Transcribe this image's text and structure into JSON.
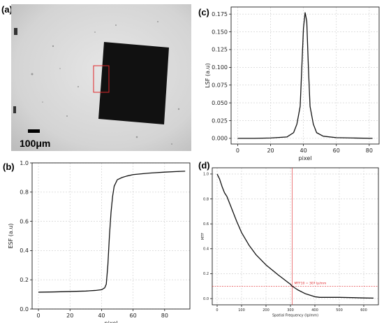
{
  "panels": {
    "a": {
      "label": "(a)",
      "scale_bar_text": "100μm"
    },
    "b": {
      "label": "(b)"
    },
    "c": {
      "label": "(c)"
    },
    "d": {
      "label": "(d)"
    }
  },
  "colors": {
    "line": "#111111",
    "grid": "#cccccc",
    "roi": "#e0262a",
    "annotation": "#e0262a"
  },
  "chart_data": [
    {
      "id": "b",
      "type": "line",
      "xlabel": "pixel",
      "ylabel": "ESF (a.u)",
      "xlim": [
        -4,
        96
      ],
      "ylim": [
        0.0,
        1.0
      ],
      "xticks": [
        0,
        20,
        40,
        60,
        80
      ],
      "yticks": [
        0.0,
        0.2,
        0.4,
        0.6,
        0.8,
        1.0
      ],
      "ytick_labels": [
        "0.0",
        "0.2",
        "0.4",
        "0.6",
        "0.8",
        "1.0"
      ],
      "grid": true,
      "x": [
        0,
        10,
        20,
        30,
        36,
        40,
        42,
        43,
        44,
        45,
        46,
        47,
        48,
        50,
        53,
        56,
        60,
        70,
        80,
        90,
        93
      ],
      "y": [
        0.115,
        0.117,
        0.12,
        0.123,
        0.127,
        0.132,
        0.145,
        0.17,
        0.3,
        0.5,
        0.66,
        0.77,
        0.84,
        0.885,
        0.9,
        0.91,
        0.92,
        0.93,
        0.937,
        0.942,
        0.943
      ]
    },
    {
      "id": "c",
      "type": "line",
      "xlabel": "pixel",
      "ylabel": "LSF (a.u)",
      "xlim": [
        -4,
        86
      ],
      "ylim": [
        -0.008,
        0.185
      ],
      "xticks": [
        0,
        20,
        40,
        60,
        80
      ],
      "yticks": [
        0.0,
        0.025,
        0.05,
        0.075,
        0.1,
        0.125,
        0.15,
        0.175
      ],
      "ytick_labels": [
        "0.000",
        "0.025",
        "0.050",
        "0.075",
        "0.100",
        "0.125",
        "0.150",
        "0.175"
      ],
      "grid": true,
      "x": [
        0,
        10,
        20,
        30,
        34,
        36,
        38,
        39,
        40,
        41,
        42,
        43,
        44,
        46,
        48,
        52,
        60,
        70,
        82
      ],
      "y": [
        0.0,
        0.0,
        0.0005,
        0.002,
        0.008,
        0.02,
        0.045,
        0.1,
        0.155,
        0.177,
        0.165,
        0.1,
        0.045,
        0.02,
        0.008,
        0.003,
        0.001,
        0.0005,
        0.0
      ]
    },
    {
      "id": "d",
      "type": "line",
      "xlabel": "Spatial Frequency (lp/mm)",
      "ylabel": "MTF",
      "xlim": [
        -20,
        660
      ],
      "ylim": [
        -0.05,
        1.05
      ],
      "xticks": [
        0,
        100,
        200,
        300,
        400,
        500,
        600
      ],
      "yticks": [
        0.0,
        0.2,
        0.4,
        0.6,
        0.8,
        1.0
      ],
      "ytick_labels": [
        "0.0",
        "0.2",
        "0.4",
        "0.6",
        "0.8",
        "1.0"
      ],
      "grid": true,
      "x": [
        0,
        10,
        20,
        30,
        40,
        60,
        80,
        100,
        130,
        160,
        200,
        250,
        300,
        307,
        330,
        360,
        400,
        420,
        450,
        500,
        550,
        600,
        640
      ],
      "y": [
        1.0,
        0.96,
        0.9,
        0.85,
        0.82,
        0.72,
        0.62,
        0.53,
        0.43,
        0.35,
        0.27,
        0.19,
        0.115,
        0.1,
        0.07,
        0.04,
        0.015,
        0.01,
        0.01,
        0.01,
        0.008,
        0.005,
        0.004
      ],
      "annotation": {
        "text": "MTF10 = 307 lp/mm",
        "x": 307,
        "y": 0.1
      }
    }
  ]
}
